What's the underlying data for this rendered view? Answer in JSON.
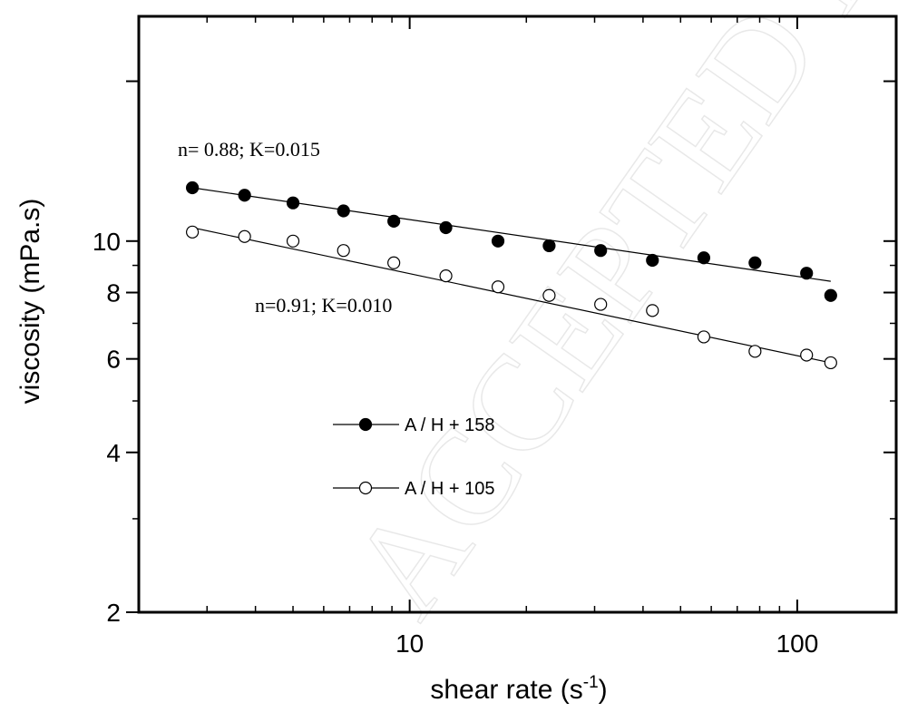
{
  "chart_data": {
    "type": "scatter",
    "xlabel": "shear rate (s",
    "xlabel_superscript": "-1",
    "xlabel_close": ")",
    "ylabel": "viscosity (mPa.s)",
    "xscale": "log",
    "yscale": "log",
    "xlim": [
      2.0,
      180
    ],
    "ylim": [
      2,
      26.5
    ],
    "x_ticks": [
      10,
      100
    ],
    "x_tick_labels": [
      "10",
      "100"
    ],
    "y_ticks": [
      2,
      4,
      6,
      8,
      10
    ],
    "y_tick_labels": [
      "2",
      "4",
      "6",
      "8",
      "10"
    ],
    "grid": false,
    "legend_placement": "center-left",
    "series": [
      {
        "name": "A / H + 158",
        "marker": "filled-circle",
        "x": [
          2.75,
          3.75,
          5.0,
          6.75,
          9.1,
          12.4,
          16.9,
          22.9,
          31.1,
          42.3,
          57.4,
          77.8,
          105.7,
          122.0
        ],
        "y": [
          12.6,
          12.2,
          11.8,
          11.4,
          10.9,
          10.6,
          10.0,
          9.8,
          9.6,
          9.2,
          9.3,
          9.1,
          8.7,
          7.9
        ],
        "fit": {
          "x": [
            2.75,
            122.0
          ],
          "y": [
            12.6,
            8.4
          ]
        },
        "annotation": "n= 0.88; K=0.015"
      },
      {
        "name": "A / H + 105",
        "marker": "open-circle",
        "x": [
          2.75,
          3.75,
          5.0,
          6.75,
          9.1,
          12.4,
          16.9,
          22.9,
          31.1,
          42.3,
          57.4,
          77.8,
          105.7,
          122.0
        ],
        "y": [
          10.4,
          10.2,
          10.0,
          9.6,
          9.1,
          8.6,
          8.2,
          7.9,
          7.6,
          7.4,
          6.6,
          6.2,
          6.1,
          5.9
        ],
        "fit": {
          "x": [
            2.75,
            122.0
          ],
          "y": [
            10.6,
            5.9
          ]
        },
        "annotation": "n=0.91; K=0.010"
      }
    ]
  }
}
